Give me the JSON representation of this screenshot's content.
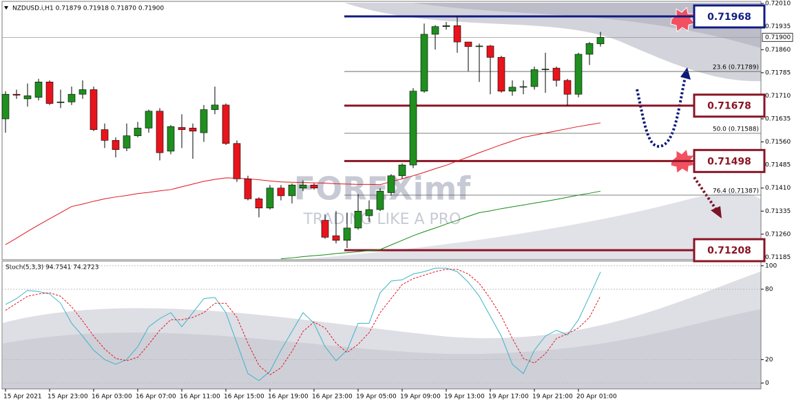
{
  "chart_data": {
    "type": "candlestick",
    "title": "NZDUSD.i,H1  0.71879 0.71918 0.71870 0.71900",
    "categories": [
      "15 Apr 2021",
      null,
      null,
      null,
      "15 Apr 23:00",
      null,
      null,
      null,
      "16 Apr 03:00",
      null,
      null,
      null,
      "16 Apr 07:00",
      null,
      null,
      null,
      "16 Apr 11:00",
      null,
      null,
      null,
      "16 Apr 15:00",
      null,
      null,
      null,
      "16 Apr 19:00",
      null,
      null,
      null,
      "16 Apr 23:00",
      null,
      null,
      null,
      "19 Apr 05:00",
      null,
      null,
      null,
      "19 Apr 09:00",
      null,
      null,
      null,
      "19 Apr 13:00",
      null,
      null,
      null,
      "19 Apr 17:00",
      null,
      null,
      null,
      "19 Apr 21:00",
      null,
      null,
      null,
      "20 Apr 01:00",
      null,
      null
    ],
    "open": [
      0.71635,
      0.71715,
      0.717,
      0.71705,
      0.71755,
      0.71688,
      0.7169,
      0.71715,
      0.7173,
      0.716,
      0.71565,
      0.7154,
      0.7158,
      0.71605,
      0.7166,
      0.7153,
      0.71607,
      0.71605,
      0.7159,
      0.71665,
      0.7168,
      0.71555,
      0.7144,
      0.71375,
      0.71345,
      0.7141,
      0.71385,
      0.7141,
      0.7142,
      0.71305,
      0.71255,
      0.7124,
      0.7128,
      0.7132,
      0.7134,
      0.71395,
      0.7145,
      0.71485,
      0.71725,
      0.7191,
      0.71935,
      0.71938,
      0.71885,
      0.7187,
      0.71872,
      0.71835,
      0.71725,
      0.71738,
      0.7174,
      0.71795,
      0.718,
      0.7176,
      0.71715,
      0.71845,
      0.71879
    ],
    "high": [
      0.71725,
      0.7173,
      0.7175,
      0.71765,
      0.7176,
      0.7173,
      0.7174,
      0.7176,
      0.7174,
      0.7162,
      0.71575,
      0.7162,
      0.71625,
      0.71665,
      0.7167,
      0.71615,
      0.7165,
      0.7162,
      0.7168,
      0.7174,
      0.71685,
      0.71565,
      0.7145,
      0.7138,
      0.7142,
      0.7142,
      0.71425,
      0.71435,
      0.71425,
      0.71325,
      0.71335,
      0.7133,
      0.7139,
      0.7137,
      0.7141,
      0.71455,
      0.7149,
      0.71735,
      0.71945,
      0.7194,
      0.7195,
      0.71968,
      0.71885,
      0.7188,
      0.71875,
      0.7184,
      0.7176,
      0.7176,
      0.71805,
      0.7185,
      0.71805,
      0.71765,
      0.7185,
      0.71885,
      0.71918
    ],
    "low": [
      0.7159,
      0.717,
      0.71675,
      0.71695,
      0.7168,
      0.7167,
      0.7168,
      0.717,
      0.71595,
      0.7154,
      0.7151,
      0.7153,
      0.71575,
      0.7159,
      0.715,
      0.7152,
      0.7154,
      0.71505,
      0.7156,
      0.7165,
      0.7155,
      0.7143,
      0.7137,
      0.71315,
      0.7134,
      0.7137,
      0.7136,
      0.714,
      0.71405,
      0.71245,
      0.7123,
      0.71215,
      0.71275,
      0.713,
      0.71335,
      0.71385,
      0.7144,
      0.71475,
      0.7172,
      0.7186,
      0.71925,
      0.7185,
      0.7179,
      0.71755,
      0.71715,
      0.7172,
      0.7171,
      0.71715,
      0.7173,
      0.7172,
      0.7174,
      0.71678,
      0.71705,
      0.7181,
      0.7187
    ],
    "close": [
      0.71715,
      0.71712,
      0.7171,
      0.71755,
      0.71685,
      0.7169,
      0.71715,
      0.7173,
      0.716,
      0.71565,
      0.71535,
      0.7158,
      0.71605,
      0.7166,
      0.71525,
      0.7161,
      0.716,
      0.71595,
      0.71665,
      0.7168,
      0.71555,
      0.7144,
      0.71375,
      0.71345,
      0.7141,
      0.71385,
      0.7142,
      0.7142,
      0.7141,
      0.7125,
      0.7124,
      0.7128,
      0.71335,
      0.7134,
      0.714,
      0.7145,
      0.71485,
      0.71725,
      0.7191,
      0.71935,
      0.71938,
      0.71885,
      0.7187,
      0.71872,
      0.71835,
      0.71725,
      0.71738,
      0.7174,
      0.71795,
      0.71797,
      0.7176,
      0.71715,
      0.71845,
      0.7188,
      0.719
    ],
    "up_color": "#1f8f1f",
    "down_color": "#e8141c",
    "series": [
      {
        "color": "#e0141c",
        "values": [
          0.71226,
          0.71247,
          0.71269,
          0.7129,
          0.7131,
          0.7133,
          0.7135,
          0.71358,
          0.71367,
          0.71375,
          0.71381,
          0.71386,
          0.71392,
          0.71396,
          0.71401,
          0.71405,
          0.71414,
          0.71423,
          0.71432,
          0.71438,
          0.71443,
          0.71442,
          0.7144,
          0.71437,
          0.71433,
          0.7143,
          0.71429,
          0.71428,
          0.71427,
          0.71426,
          0.71424,
          0.71423,
          0.71422,
          0.71422,
          0.71421,
          0.71431,
          0.7144,
          0.7145,
          0.71461,
          0.71473,
          0.71484,
          0.71498,
          0.71511,
          0.71525,
          0.71538,
          0.71551,
          0.71563,
          0.71575,
          0.71582,
          0.71589,
          0.71596,
          0.71603,
          0.7161,
          0.71616,
          0.71622
        ]
      },
      {
        "color": "#138a13",
        "values": [
          null,
          null,
          null,
          null,
          null,
          null,
          null,
          null,
          null,
          null,
          null,
          null,
          null,
          null,
          null,
          null,
          null,
          null,
          null,
          null,
          null,
          null,
          null,
          null,
          null,
          0.7118,
          0.71183,
          0.71187,
          0.7119,
          0.71193,
          0.71197,
          0.712,
          0.71203,
          0.71207,
          0.7121,
          0.71225,
          0.7124,
          0.71255,
          0.71268,
          0.7128,
          0.71293,
          0.71305,
          0.71318,
          0.7133,
          0.71336,
          0.71343,
          0.71349,
          0.71355,
          0.71361,
          0.71367,
          0.71373,
          0.7138,
          0.71387,
          0.71393,
          0.714
        ]
      }
    ],
    "ylim": [
      0.71177,
      0.72017
    ],
    "yticks": [
      {
        "value": 0.7201,
        "label": "0.72010"
      },
      0.71935,
      {
        "value": 0.7186,
        "label": "0.71860"
      },
      0.71785,
      {
        "value": 0.7171,
        "label": "0.71710"
      },
      0.71635,
      {
        "value": 0.7156,
        "label": "0.71560"
      },
      0.71485,
      {
        "value": 0.7141,
        "label": "0.71410"
      },
      0.71335,
      {
        "value": 0.7126,
        "label": "0.71260"
      },
      0.71185
    ],
    "last_price": {
      "value": 0.719,
      "label": "0.71900"
    },
    "levels": [
      {
        "value": 0.71968,
        "color": "#101c82"
      },
      {
        "value": 0.71678,
        "color": "#8a1424"
      },
      {
        "value": 0.71498,
        "color": "#8a1424"
      },
      {
        "value": 0.71208,
        "color": "#8a1424"
      }
    ],
    "fib": [
      {
        "value": 0.71789,
        "label": "23.6 (0.71789)"
      },
      {
        "value": 0.71588,
        "label": "50.0 (0.71588)"
      },
      {
        "value": 0.71387,
        "label": "76.4 (0.71387)"
      }
    ],
    "watermark": [
      "FOREXimf",
      "TRADING LIKE A PRO"
    ],
    "indicator": {
      "type": "line",
      "title": "Stoch(5,3,3) 94.7541 74.2723",
      "series": [
        {
          "color": "#3bb4c6",
          "values": [
            67,
            72,
            79,
            78,
            76,
            68,
            51,
            40,
            28,
            20,
            16,
            20,
            31,
            48,
            55,
            60,
            48,
            60,
            72,
            73,
            60,
            34,
            8,
            2,
            10,
            28,
            44,
            60,
            51,
            31,
            19,
            28,
            51,
            51,
            77,
            87,
            88,
            93,
            95,
            98,
            98,
            95,
            86,
            74,
            57,
            40,
            16,
            8,
            28,
            40,
            45,
            41,
            54,
            74,
            94.75
          ]
        },
        {
          "color": "#e0141c",
          "dashed": true,
          "values": [
            62,
            68,
            74,
            76,
            77,
            74,
            65,
            53,
            40,
            29,
            21,
            19,
            22,
            33,
            45,
            54,
            54,
            56,
            60,
            68,
            68,
            56,
            34,
            15,
            7,
            13,
            27,
            44,
            52,
            47,
            34,
            26,
            33,
            43,
            60,
            72,
            84,
            89,
            92,
            95,
            97,
            97,
            93,
            85,
            72,
            57,
            38,
            21,
            17,
            25,
            38,
            42,
            47,
            56,
            74.27
          ]
        }
      ],
      "ylim": [
        -5,
        104
      ],
      "yticks": [
        100,
        80,
        20,
        0
      ]
    }
  }
}
